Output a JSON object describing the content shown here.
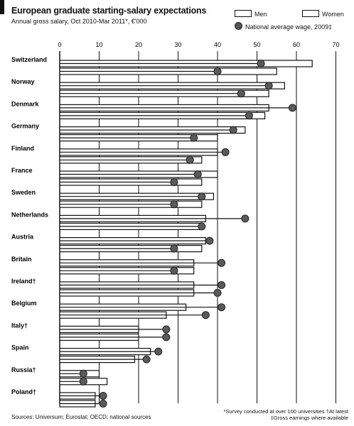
{
  "chart_data": {
    "type": "bar",
    "title": "European graduate starting-salary expectations",
    "subtitle": "Annual gross salary, Oct 2010-Mar 2011*, €'000",
    "categories": [
      "Switzerland",
      "Norway",
      "Denmark",
      "Germany",
      "Finland",
      "France",
      "Sweden",
      "Netherlands",
      "Austria",
      "Britain",
      "Ireland†",
      "Belgium",
      "Italy†",
      "Spain",
      "Russia†",
      "Poland†"
    ],
    "series": [
      {
        "name": "Men",
        "values": [
          64,
          57,
          53,
          47,
          40,
          40,
          39,
          37,
          37,
          34,
          34,
          32,
          20,
          23,
          10,
          9
        ]
      },
      {
        "name": "Women",
        "values": [
          55,
          53,
          52,
          40,
          36,
          36,
          36,
          36,
          36,
          34,
          34,
          27,
          20,
          19,
          12,
          9
        ]
      },
      {
        "name": "National average wage, 2009‡",
        "values": [
          51,
          53,
          59,
          44,
          42,
          35,
          36,
          47,
          38,
          41,
          41,
          41,
          27,
          25,
          6,
          11
        ]
      },
      {
        "name": "National average wage, 2009‡ (women)",
        "values": [
          40,
          46,
          48,
          34,
          33,
          29,
          29,
          36,
          29,
          29,
          40,
          37,
          27,
          22,
          6,
          11
        ]
      }
    ],
    "xlim": [
      0,
      70
    ],
    "ticks": [
      "0",
      "10",
      "20",
      "30",
      "40",
      "50",
      "60",
      "70"
    ],
    "legend_placement": "top-right",
    "colors": {
      "bar_fill": "#ffffff",
      "bar_stroke": "#111111",
      "dot_fill": "#5a5a5a",
      "dot_stroke": "#222222",
      "grid": "#111111"
    }
  },
  "legend": {
    "men": "Men",
    "women": "Women",
    "dot": "National average wage, 2009‡"
  },
  "source": "Sources: Universum; Eurostat; OECD; national sources",
  "footnotes": {
    "line1": "*Survey conducted at over 100 universities   †At latest",
    "line2": "‡Gross earnings where available"
  }
}
